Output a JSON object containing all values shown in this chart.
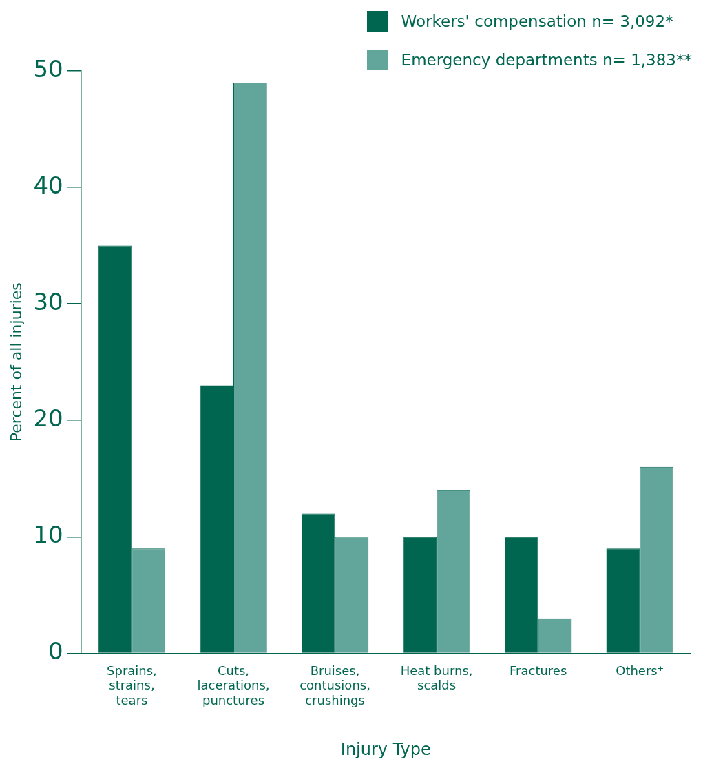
{
  "chart_data": {
    "type": "bar",
    "xlabel": "Injury Type",
    "ylabel": "Percent of all injuries",
    "categories": [
      "Sprains, strains, tears",
      "Cuts, lacerations, punctures",
      "Bruises, contusions, crushings",
      "Heat burns, scalds",
      "Fractures",
      "Others⁺"
    ],
    "series": [
      {
        "name": "Workers' compensation n= 3,092*",
        "color": "#00664f",
        "values": [
          35,
          23,
          12,
          10,
          10,
          9
        ]
      },
      {
        "name": "Emergency departments n= 1,383**",
        "color": "#62a59a",
        "values": [
          9,
          49,
          10,
          14,
          3,
          16
        ]
      }
    ],
    "ylim": [
      0,
      50
    ],
    "yticks": [
      0,
      10,
      20,
      30,
      40,
      50
    ],
    "grid": false,
    "legend": "top right"
  }
}
